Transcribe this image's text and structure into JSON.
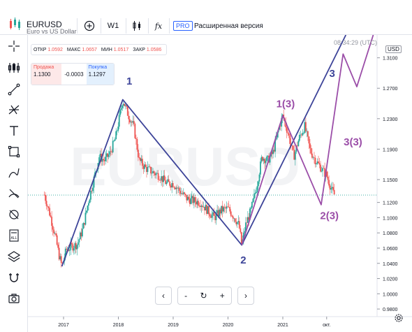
{
  "header": {
    "symbol": "EURUSD",
    "description": "Euro vs US Dollar",
    "timeframe": "W1",
    "add_label": "+",
    "fx_label": "fx",
    "pro_badge": "PRO",
    "pro_text": "Расширенная версия"
  },
  "ohlc": {
    "open_label": "ОТКР",
    "open": "1.0592",
    "high_label": "МАКС",
    "high": "1.0657",
    "low_label": "МИН",
    "low": "1.0517",
    "close_label": "ЗАКР",
    "close": "1.0586"
  },
  "trade": {
    "sell_label": "Продажа",
    "sell_price": "1.1300",
    "spread": "-0.0003",
    "buy_label": "Покупка",
    "buy_price": "1.1297"
  },
  "clock": "08:34:29 (UTC)",
  "currency": "USD",
  "watermark": "EURUSD",
  "navigation": {
    "prev": "‹",
    "zoom_out": "-",
    "reset": "↻",
    "zoom_in": "+",
    "next": "›"
  },
  "sidebar_icons": [
    "crosshair-icon",
    "candles-tool-icon",
    "trendline-icon",
    "fib-tool-icon",
    "text-icon",
    "rectangle-icon",
    "brush-icon",
    "measure-icon",
    "ruler-icon",
    "all-tools-icon",
    "layers-icon",
    "magnet-icon",
    "camera-icon"
  ],
  "colors": {
    "wave_major": "#3d4499",
    "wave_minor": "#9b4ea8",
    "bull": "#26a69a",
    "bear": "#ef5350",
    "price_line": "#26a69a",
    "accent": "#2962ff"
  },
  "chart_data": {
    "type": "candlestick",
    "price_axis": [
      "1.3100",
      "1.2700",
      "1.2300",
      "1.1900",
      "1.1500",
      "1.1200",
      "1.1000",
      "1.0800",
      "1.0600",
      "1.0400",
      "1.0200",
      "1.0000",
      "0.9800"
    ],
    "time_axis": [
      "2017",
      "2018",
      "2019",
      "2020",
      "2021",
      "окт."
    ],
    "ylim": [
      0.97,
      1.34
    ],
    "current_price": 1.1297,
    "wave_labels": [
      {
        "text": "1",
        "color": "#3d4499"
      },
      {
        "text": "2",
        "color": "#3d4499"
      },
      {
        "text": "3",
        "color": "#3d4499"
      },
      {
        "text": "1(3)",
        "color": "#9b4ea8"
      },
      {
        "text": "2(3)",
        "color": "#9b4ea8"
      },
      {
        "text": "3(3)",
        "color": "#9b4ea8"
      }
    ],
    "wave_major": [
      [
        2016.97,
        1.036
      ],
      [
        2018.08,
        1.255
      ],
      [
        2020.25,
        1.064
      ],
      [
        2022.15,
        1.34
      ]
    ],
    "wave_minor": [
      [
        2020.25,
        1.064
      ],
      [
        2021.0,
        1.234
      ],
      [
        2021.7,
        1.117
      ],
      [
        2022.1,
        1.315
      ],
      [
        2022.35,
        1.272
      ],
      [
        2022.65,
        1.34
      ]
    ],
    "price_path": [
      [
        2016.65,
        1.13
      ],
      [
        2016.75,
        1.105
      ],
      [
        2016.85,
        1.075
      ],
      [
        2016.92,
        1.05
      ],
      [
        2016.97,
        1.036
      ],
      [
        2017.05,
        1.058
      ],
      [
        2017.15,
        1.062
      ],
      [
        2017.25,
        1.065
      ],
      [
        2017.35,
        1.085
      ],
      [
        2017.45,
        1.12
      ],
      [
        2017.55,
        1.15
      ],
      [
        2017.65,
        1.18
      ],
      [
        2017.75,
        1.175
      ],
      [
        2017.85,
        1.185
      ],
      [
        2017.95,
        1.205
      ],
      [
        2018.08,
        1.255
      ],
      [
        2018.18,
        1.235
      ],
      [
        2018.28,
        1.22
      ],
      [
        2018.38,
        1.175
      ],
      [
        2018.5,
        1.165
      ],
      [
        2018.62,
        1.16
      ],
      [
        2018.75,
        1.155
      ],
      [
        2018.88,
        1.145
      ],
      [
        2019.0,
        1.145
      ],
      [
        2019.12,
        1.135
      ],
      [
        2019.25,
        1.125
      ],
      [
        2019.38,
        1.122
      ],
      [
        2019.5,
        1.12
      ],
      [
        2019.62,
        1.11
      ],
      [
        2019.75,
        1.1
      ],
      [
        2019.88,
        1.11
      ],
      [
        2020.0,
        1.112
      ],
      [
        2020.12,
        1.1
      ],
      [
        2020.2,
        1.09
      ],
      [
        2020.25,
        1.064
      ],
      [
        2020.32,
        1.09
      ],
      [
        2020.42,
        1.11
      ],
      [
        2020.52,
        1.14
      ],
      [
        2020.62,
        1.18
      ],
      [
        2020.72,
        1.175
      ],
      [
        2020.82,
        1.185
      ],
      [
        2020.92,
        1.215
      ],
      [
        2021.0,
        1.234
      ],
      [
        2021.1,
        1.21
      ],
      [
        2021.2,
        1.18
      ],
      [
        2021.3,
        1.205
      ],
      [
        2021.4,
        1.22
      ],
      [
        2021.5,
        1.188
      ],
      [
        2021.6,
        1.175
      ],
      [
        2021.7,
        1.165
      ],
      [
        2021.8,
        1.155
      ],
      [
        2021.9,
        1.135
      ],
      [
        2021.95,
        1.129
      ]
    ]
  }
}
